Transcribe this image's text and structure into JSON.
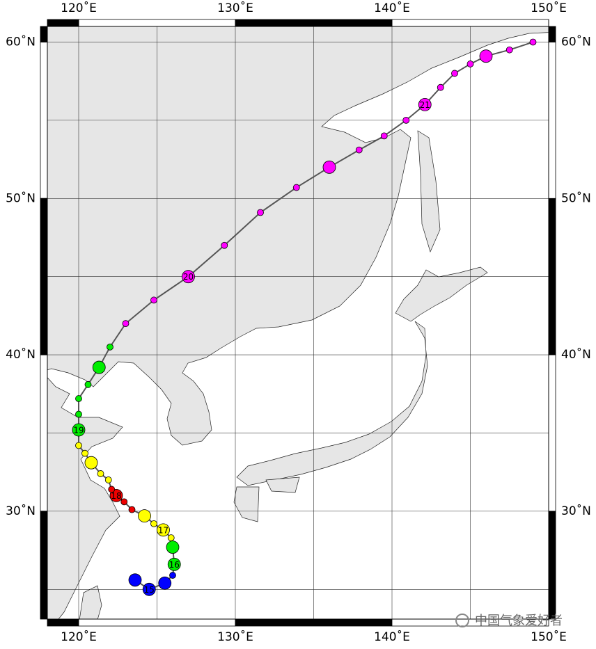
{
  "map": {
    "lonlim": [
      118,
      150
    ],
    "latlim": [
      23.1,
      61
    ],
    "lonticks": [
      {
        "value": 120,
        "label": "120˚E"
      },
      {
        "value": 130,
        "label": "130˚E"
      },
      {
        "value": 140,
        "label": "140˚E"
      },
      {
        "value": 150,
        "label": "150˚E"
      }
    ],
    "latticks": [
      {
        "value": 30,
        "label": "30˚N"
      },
      {
        "value": 40,
        "label": "40˚N"
      },
      {
        "value": 50,
        "label": "50˚N"
      },
      {
        "value": 60,
        "label": "60˚N"
      }
    ],
    "grid_lon": [
      120,
      125,
      130,
      135,
      140,
      145,
      150
    ],
    "grid_lat": [
      25,
      30,
      35,
      40,
      45,
      50,
      55,
      60
    ],
    "track": {
      "line_color": "#555555",
      "lon": [
        123.6,
        124.5,
        125.5,
        126.0,
        126.1,
        126.0,
        125.9,
        125.4,
        124.8,
        124.2,
        123.4,
        122.9,
        122.4,
        122.1,
        121.9,
        121.4,
        120.8,
        120.4,
        120.0,
        120.0,
        120.0,
        120.0,
        120.6,
        121.3,
        122.0,
        123.0,
        124.8,
        127.0,
        129.3,
        131.6,
        133.9,
        136.0,
        137.9,
        139.5,
        140.9,
        142.1,
        143.1,
        144.0,
        145.0,
        146.0,
        147.5,
        149.0
      ],
      "lat": [
        25.6,
        25.0,
        25.4,
        25.9,
        26.6,
        27.7,
        28.3,
        28.8,
        29.2,
        29.7,
        30.1,
        30.6,
        31.0,
        31.4,
        32.0,
        32.4,
        33.1,
        33.7,
        34.2,
        35.2,
        36.2,
        37.2,
        38.1,
        39.2,
        40.5,
        42.0,
        43.5,
        45.0,
        47.0,
        49.1,
        50.7,
        52.0,
        53.1,
        54.0,
        55.0,
        56.0,
        57.1,
        58.0,
        58.6,
        59.1,
        59.5,
        60.0
      ],
      "colors": [
        "#0000ff",
        "#0000ff",
        "#0000ff",
        "#0000ff",
        "#00ee00",
        "#00ee00",
        "#ffff00",
        "#ffff00",
        "#ffff00",
        "#ffff00",
        "#ee0000",
        "#ee0000",
        "#ee0000",
        "#ee0000",
        "#ffff00",
        "#ffff00",
        "#ffff00",
        "#ffff00",
        "#ffff00",
        "#00ee00",
        "#00ee00",
        "#00ee00",
        "#00ee00",
        "#00ee00",
        "#00ee00",
        "#ff00ff",
        "#ff00ff",
        "#ff00ff",
        "#ff00ff",
        "#ff00ff",
        "#ff00ff",
        "#ff00ff",
        "#ff00ff",
        "#ff00ff",
        "#ff00ff",
        "#ff00ff",
        "#ff00ff",
        "#ff00ff",
        "#ff00ff",
        "#ff00ff",
        "#ff00ff",
        "#ff00ff"
      ],
      "major": [
        true,
        true,
        true,
        false,
        true,
        true,
        false,
        true,
        false,
        true,
        false,
        false,
        true,
        false,
        false,
        false,
        true,
        false,
        false,
        true,
        false,
        false,
        false,
        true,
        false,
        false,
        false,
        true,
        false,
        false,
        false,
        true,
        false,
        false,
        false,
        true,
        false,
        false,
        false,
        true,
        false,
        false
      ],
      "labels": [
        null,
        "15",
        null,
        null,
        "16",
        null,
        null,
        "17",
        null,
        null,
        null,
        null,
        "18",
        null,
        null,
        null,
        null,
        null,
        null,
        "19",
        null,
        null,
        null,
        null,
        null,
        null,
        null,
        "20",
        null,
        null,
        null,
        null,
        null,
        null,
        null,
        "21",
        null,
        null,
        null,
        null,
        null,
        null
      ]
    },
    "watermark": "中国气象爱好者"
  }
}
